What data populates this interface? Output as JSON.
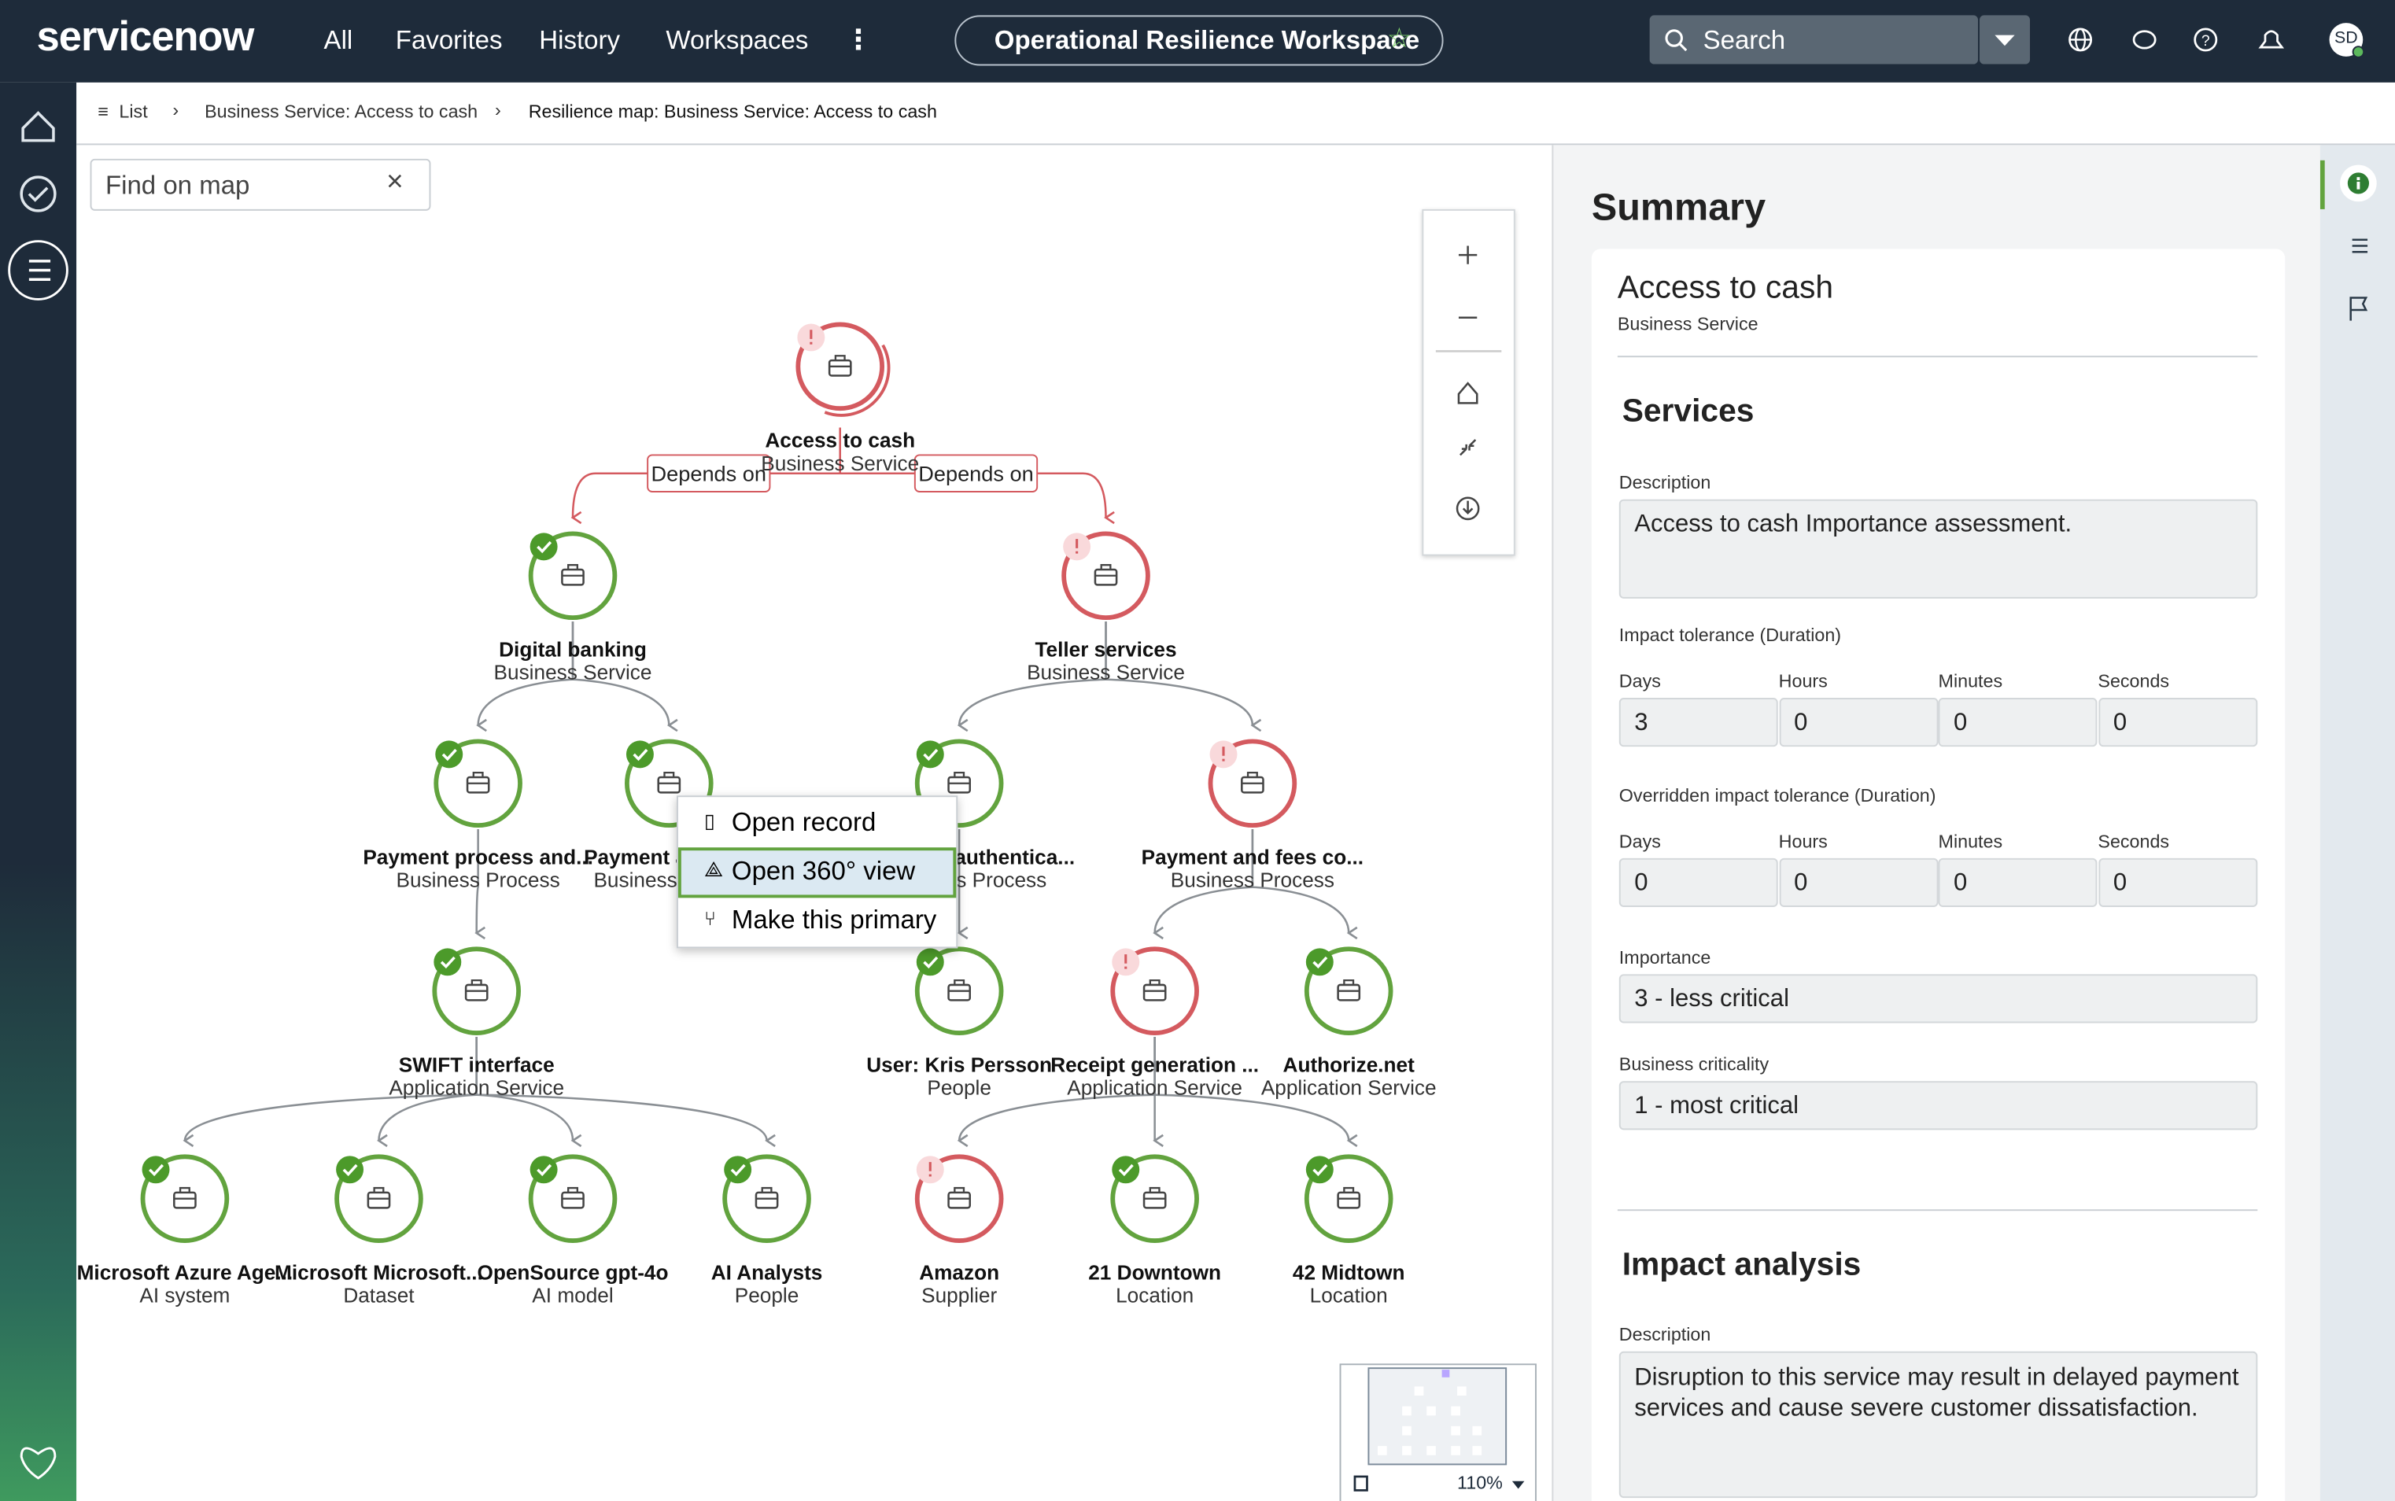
{
  "nav": {
    "brand": "servicenow",
    "links": [
      "All",
      "Favorites",
      "History",
      "Workspaces"
    ],
    "workspace": "Operational Resilience Workspace",
    "search": "Search",
    "avatar": "SD"
  },
  "breadcrumb": [
    "List",
    "Business Service: Access to cash",
    "Resilience map: Business Service: Access to cash"
  ],
  "map": {
    "find_placeholder": "Find on map",
    "zoom": "110%",
    "edge_labels": [
      "Depends on",
      "Depends on"
    ],
    "nodes": [
      {
        "label": "Access to cash",
        "type": "Business Service"
      },
      {
        "label": "Digital banking",
        "type": "Business Service"
      },
      {
        "label": "Teller services",
        "type": "Business Service"
      },
      {
        "label": "Payment process and...",
        "type": "Business Process"
      },
      {
        "label": "Payment a",
        "type": "Business"
      },
      {
        "label": "authentica...",
        "type": "s Process"
      },
      {
        "label": "Payment and fees co...",
        "type": "Business Process"
      },
      {
        "label": "SWIFT interface",
        "type": "Application Service"
      },
      {
        "label": "User: Kris Persson",
        "type": "People"
      },
      {
        "label": "Receipt generation ...",
        "type": "Application Service"
      },
      {
        "label": "Authorize.net",
        "type": "Application Service"
      },
      {
        "label": "Microsoft Azure Age...",
        "type": "AI system"
      },
      {
        "label": "Microsoft Microsoft...",
        "type": "Dataset"
      },
      {
        "label": "OpenSource gpt-4o",
        "type": "AI model"
      },
      {
        "label": "AI Analysts",
        "type": "People"
      },
      {
        "label": "Amazon",
        "type": "Supplier"
      },
      {
        "label": "21 Downtown",
        "type": "Location"
      },
      {
        "label": "42 Midtown",
        "type": "Location"
      }
    ],
    "context_menu": [
      "Open record",
      "Open 360° view",
      "Make this primary"
    ]
  },
  "summary": {
    "title": "Summary",
    "name": "Access to cash",
    "kind": "Business Service",
    "services": {
      "heading": "Services",
      "description_label": "Description",
      "description": "Access to cash Importance assessment.",
      "tolerance": {
        "title": "Impact tolerance (Duration)",
        "units": [
          "Days",
          "Hours",
          "Minutes",
          "Seconds"
        ],
        "values": [
          "3",
          "0",
          "0",
          "0"
        ]
      },
      "overridden": {
        "title": "Overridden impact tolerance (Duration)",
        "units": [
          "Days",
          "Hours",
          "Minutes",
          "Seconds"
        ],
        "values": [
          "0",
          "0",
          "0",
          "0"
        ]
      },
      "importance_label": "Importance",
      "importance": "3 - less critical",
      "criticality_label": "Business criticality",
      "criticality": "1 - most critical"
    },
    "impact": {
      "heading": "Impact analysis",
      "description_label": "Description",
      "description": "Disruption to this service may result in delayed payment services and cause severe customer dissatisfaction."
    }
  }
}
